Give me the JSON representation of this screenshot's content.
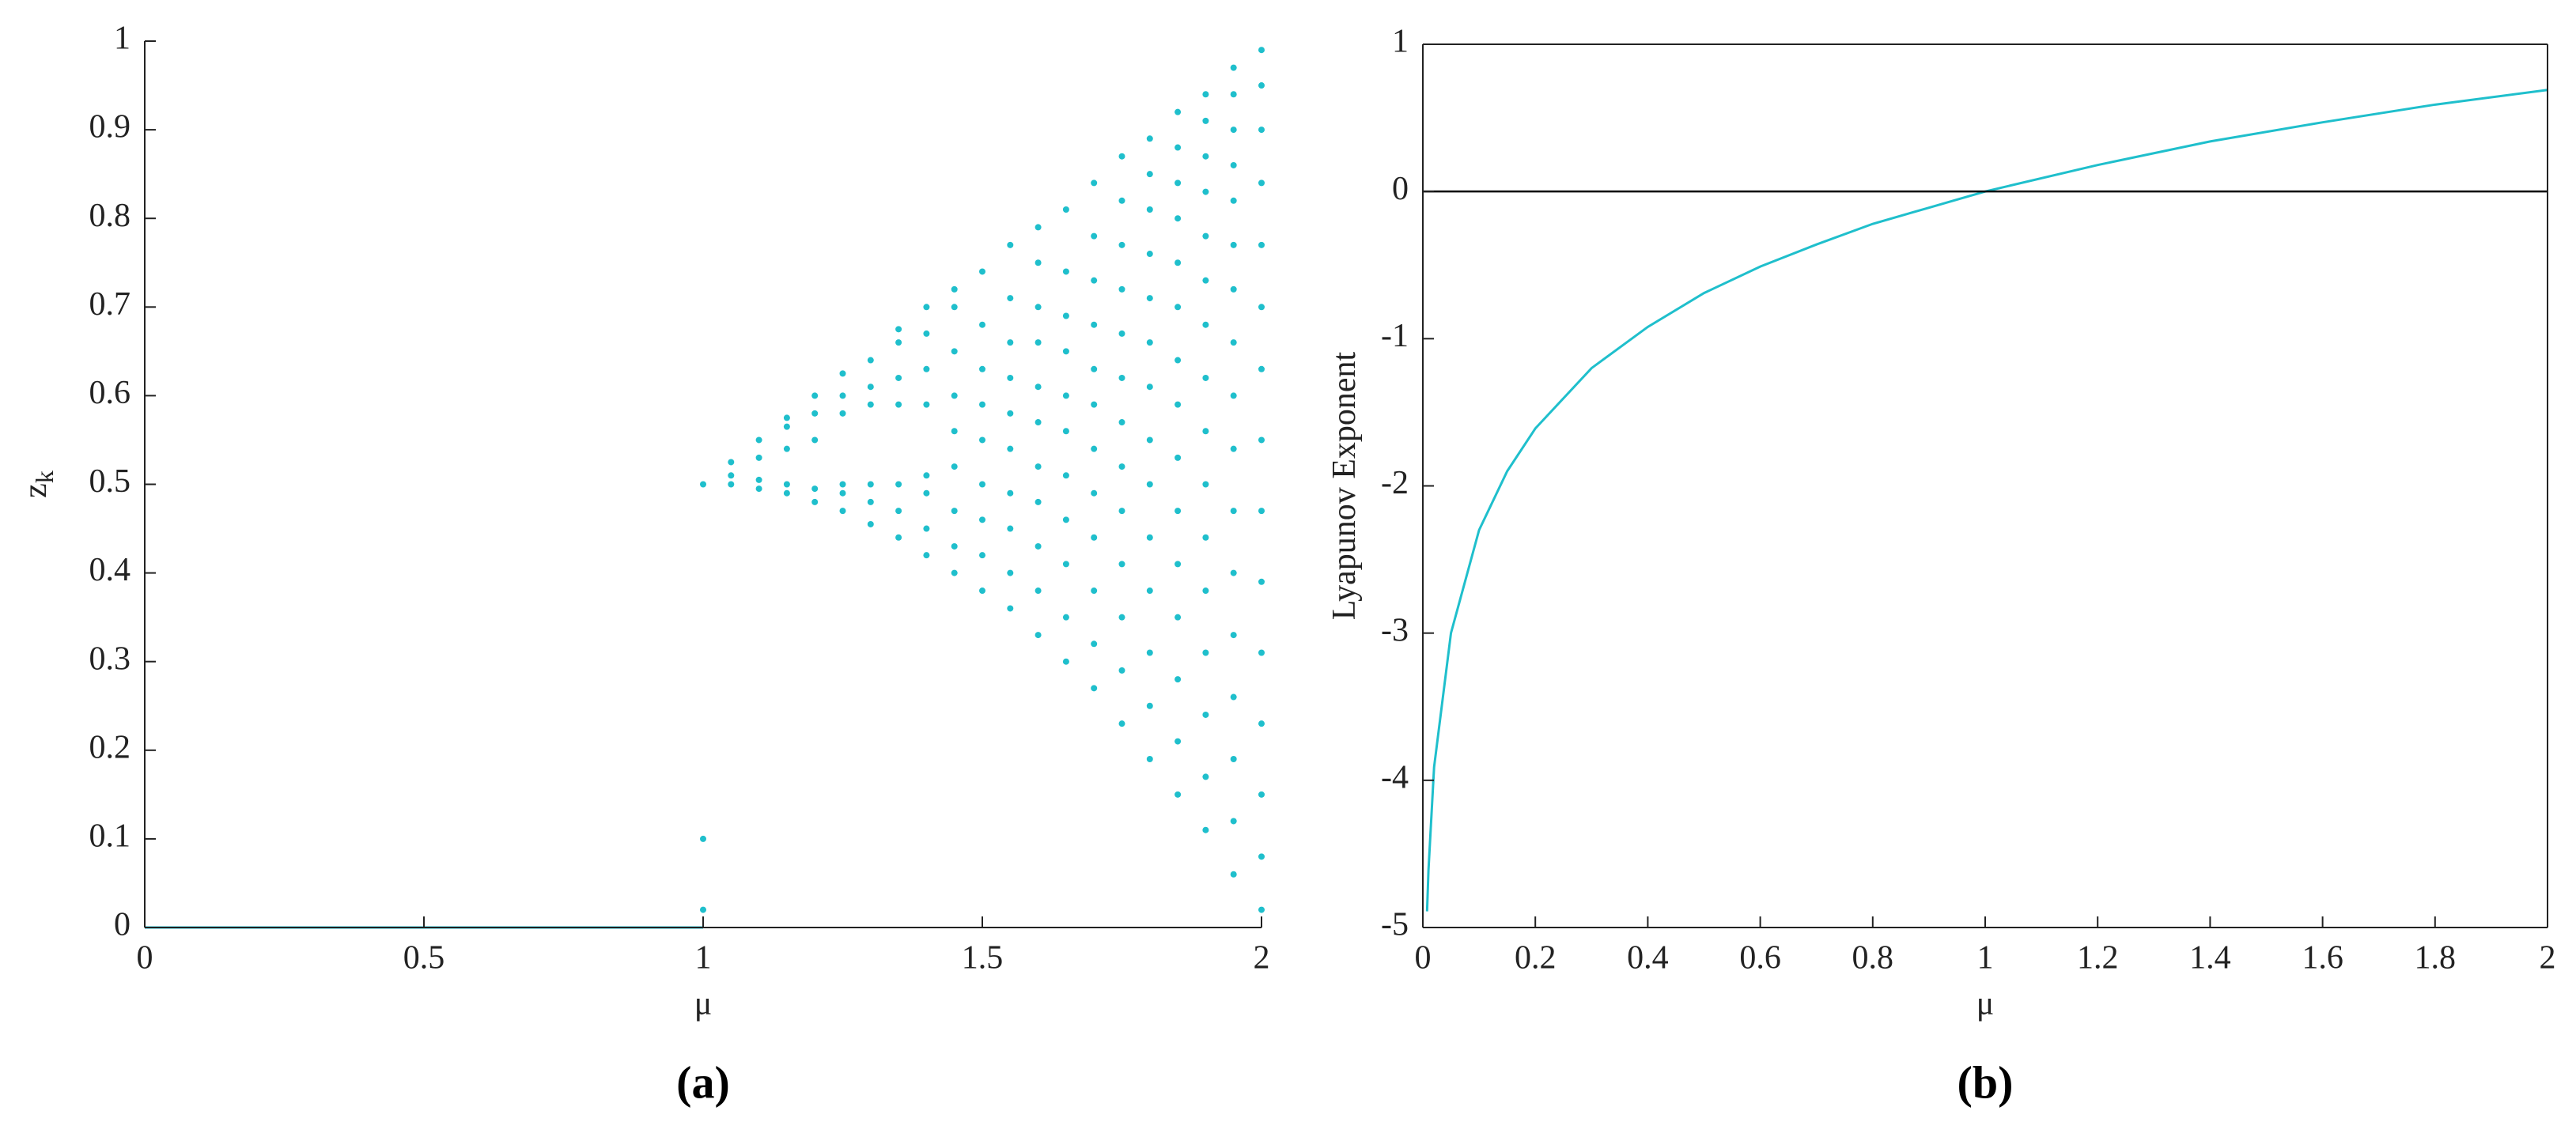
{
  "chart_data": [
    {
      "type": "scatter",
      "xlabel": "μ",
      "ylabel": "z",
      "ylabel_subscript": "k",
      "panel_label": "(a)",
      "box": false,
      "xlim": [
        0,
        2
      ],
      "ylim": [
        0,
        1
      ],
      "xticks": [
        0,
        0.5,
        1,
        1.5,
        2
      ],
      "yticks": [
        0,
        0.1,
        0.2,
        0.3,
        0.4,
        0.5,
        0.6,
        0.7,
        0.8,
        0.9,
        1
      ],
      "series": [
        {
          "type": "line",
          "color": "#1fbfcc",
          "x": [
            0,
            1
          ],
          "values": [
            0,
            0
          ]
        },
        {
          "type": "scatter",
          "color": "#1fbfcc",
          "x": [
            1,
            1,
            1,
            1.05,
            1.05,
            1.05,
            1.1,
            1.1,
            1.1,
            1.1,
            1.15,
            1.15,
            1.15,
            1.15,
            1.15,
            1.2,
            1.2,
            1.2,
            1.2,
            1.2,
            1.25,
            1.25,
            1.25,
            1.25,
            1.25,
            1.25,
            1.3,
            1.3,
            1.3,
            1.3,
            1.3,
            1.3,
            1.35,
            1.35,
            1.35,
            1.35,
            1.35,
            1.35,
            1.35,
            1.4,
            1.4,
            1.4,
            1.4,
            1.4,
            1.4,
            1.4,
            1.4,
            1.45,
            1.45,
            1.45,
            1.45,
            1.45,
            1.45,
            1.45,
            1.45,
            1.45,
            1.5,
            1.5,
            1.5,
            1.5,
            1.5,
            1.5,
            1.5,
            1.5,
            1.5,
            1.55,
            1.55,
            1.55,
            1.55,
            1.55,
            1.55,
            1.55,
            1.55,
            1.55,
            1.55,
            1.6,
            1.6,
            1.6,
            1.6,
            1.6,
            1.6,
            1.6,
            1.6,
            1.6,
            1.6,
            1.6,
            1.65,
            1.65,
            1.65,
            1.65,
            1.65,
            1.65,
            1.65,
            1.65,
            1.65,
            1.65,
            1.65,
            1.7,
            1.7,
            1.7,
            1.7,
            1.7,
            1.7,
            1.7,
            1.7,
            1.7,
            1.7,
            1.7,
            1.7,
            1.75,
            1.75,
            1.75,
            1.75,
            1.75,
            1.75,
            1.75,
            1.75,
            1.75,
            1.75,
            1.75,
            1.75,
            1.75,
            1.8,
            1.8,
            1.8,
            1.8,
            1.8,
            1.8,
            1.8,
            1.8,
            1.8,
            1.8,
            1.8,
            1.8,
            1.8,
            1.8,
            1.85,
            1.85,
            1.85,
            1.85,
            1.85,
            1.85,
            1.85,
            1.85,
            1.85,
            1.85,
            1.85,
            1.85,
            1.85,
            1.85,
            1.85,
            1.9,
            1.9,
            1.9,
            1.9,
            1.9,
            1.9,
            1.9,
            1.9,
            1.9,
            1.9,
            1.9,
            1.9,
            1.9,
            1.9,
            1.9,
            1.9,
            1.95,
            1.95,
            1.95,
            1.95,
            1.95,
            1.95,
            1.95,
            1.95,
            1.95,
            1.95,
            1.95,
            1.95,
            1.95,
            1.95,
            1.95,
            1.95,
            1.95,
            2,
            2,
            2,
            2,
            2,
            2,
            2,
            2,
            2,
            2,
            2,
            2,
            2,
            2,
            2
          ],
          "values": [
            0.5,
            0.1,
            0.02,
            0.5,
            0.51,
            0.525,
            0.495,
            0.505,
            0.53,
            0.55,
            0.49,
            0.5,
            0.54,
            0.565,
            0.575,
            0.48,
            0.495,
            0.55,
            0.58,
            0.6,
            0.47,
            0.49,
            0.5,
            0.58,
            0.6,
            0.625,
            0.455,
            0.48,
            0.5,
            0.59,
            0.61,
            0.64,
            0.44,
            0.47,
            0.5,
            0.59,
            0.62,
            0.66,
            0.675,
            0.42,
            0.45,
            0.49,
            0.51,
            0.59,
            0.63,
            0.67,
            0.7,
            0.4,
            0.43,
            0.47,
            0.52,
            0.56,
            0.6,
            0.65,
            0.7,
            0.72,
            0.38,
            0.42,
            0.46,
            0.5,
            0.55,
            0.59,
            0.63,
            0.68,
            0.74,
            0.36,
            0.4,
            0.45,
            0.49,
            0.54,
            0.58,
            0.62,
            0.66,
            0.71,
            0.77,
            0.33,
            0.38,
            0.43,
            0.48,
            0.52,
            0.57,
            0.61,
            0.66,
            0.7,
            0.75,
            0.79,
            0.3,
            0.35,
            0.41,
            0.46,
            0.51,
            0.56,
            0.6,
            0.65,
            0.69,
            0.74,
            0.81,
            0.27,
            0.32,
            0.38,
            0.44,
            0.49,
            0.54,
            0.59,
            0.63,
            0.68,
            0.73,
            0.78,
            0.84,
            0.23,
            0.29,
            0.35,
            0.41,
            0.47,
            0.52,
            0.57,
            0.62,
            0.67,
            0.72,
            0.77,
            0.82,
            0.87,
            0.19,
            0.25,
            0.31,
            0.38,
            0.44,
            0.5,
            0.55,
            0.61,
            0.66,
            0.71,
            0.76,
            0.81,
            0.85,
            0.89,
            0.15,
            0.21,
            0.28,
            0.35,
            0.41,
            0.47,
            0.53,
            0.59,
            0.64,
            0.7,
            0.75,
            0.8,
            0.84,
            0.88,
            0.92,
            0.11,
            0.17,
            0.24,
            0.31,
            0.38,
            0.44,
            0.5,
            0.56,
            0.62,
            0.68,
            0.73,
            0.78,
            0.83,
            0.87,
            0.91,
            0.94,
            0.06,
            0.12,
            0.19,
            0.26,
            0.33,
            0.4,
            0.47,
            0.54,
            0.6,
            0.66,
            0.72,
            0.77,
            0.82,
            0.86,
            0.9,
            0.94,
            0.97,
            0.02,
            0.08,
            0.15,
            0.23,
            0.31,
            0.39,
            0.47,
            0.55,
            0.63,
            0.7,
            0.77,
            0.84,
            0.9,
            0.95,
            0.99
          ]
        }
      ]
    },
    {
      "type": "line",
      "xlabel": "μ",
      "ylabel": "Lyapunov Exponent",
      "panel_label": "(b)",
      "box": true,
      "xlim": [
        0,
        2
      ],
      "ylim": [
        -5,
        1
      ],
      "xticks": [
        0,
        0.2,
        0.4,
        0.6,
        0.8,
        1,
        1.2,
        1.4,
        1.6,
        1.8,
        2
      ],
      "yticks": [
        -5,
        -4,
        -3,
        -2,
        -1,
        0,
        1
      ],
      "reference_line": 0,
      "reference_color": "#000000",
      "series": [
        {
          "type": "line",
          "color": "#1fbfcc",
          "x": [
            0.0075,
            0.01,
            0.02,
            0.05,
            0.1,
            0.15,
            0.2,
            0.3,
            0.4,
            0.5,
            0.6,
            0.7,
            0.8,
            0.9,
            1,
            1.2,
            1.4,
            1.6,
            1.8,
            2
          ],
          "values": [
            -4.89,
            -4.61,
            -3.91,
            -3,
            -2.3,
            -1.9,
            -1.61,
            -1.2,
            -0.92,
            -0.69,
            -0.51,
            -0.36,
            -0.22,
            -0.11,
            0,
            0.18,
            0.34,
            0.47,
            0.59,
            0.69
          ]
        }
      ]
    }
  ]
}
